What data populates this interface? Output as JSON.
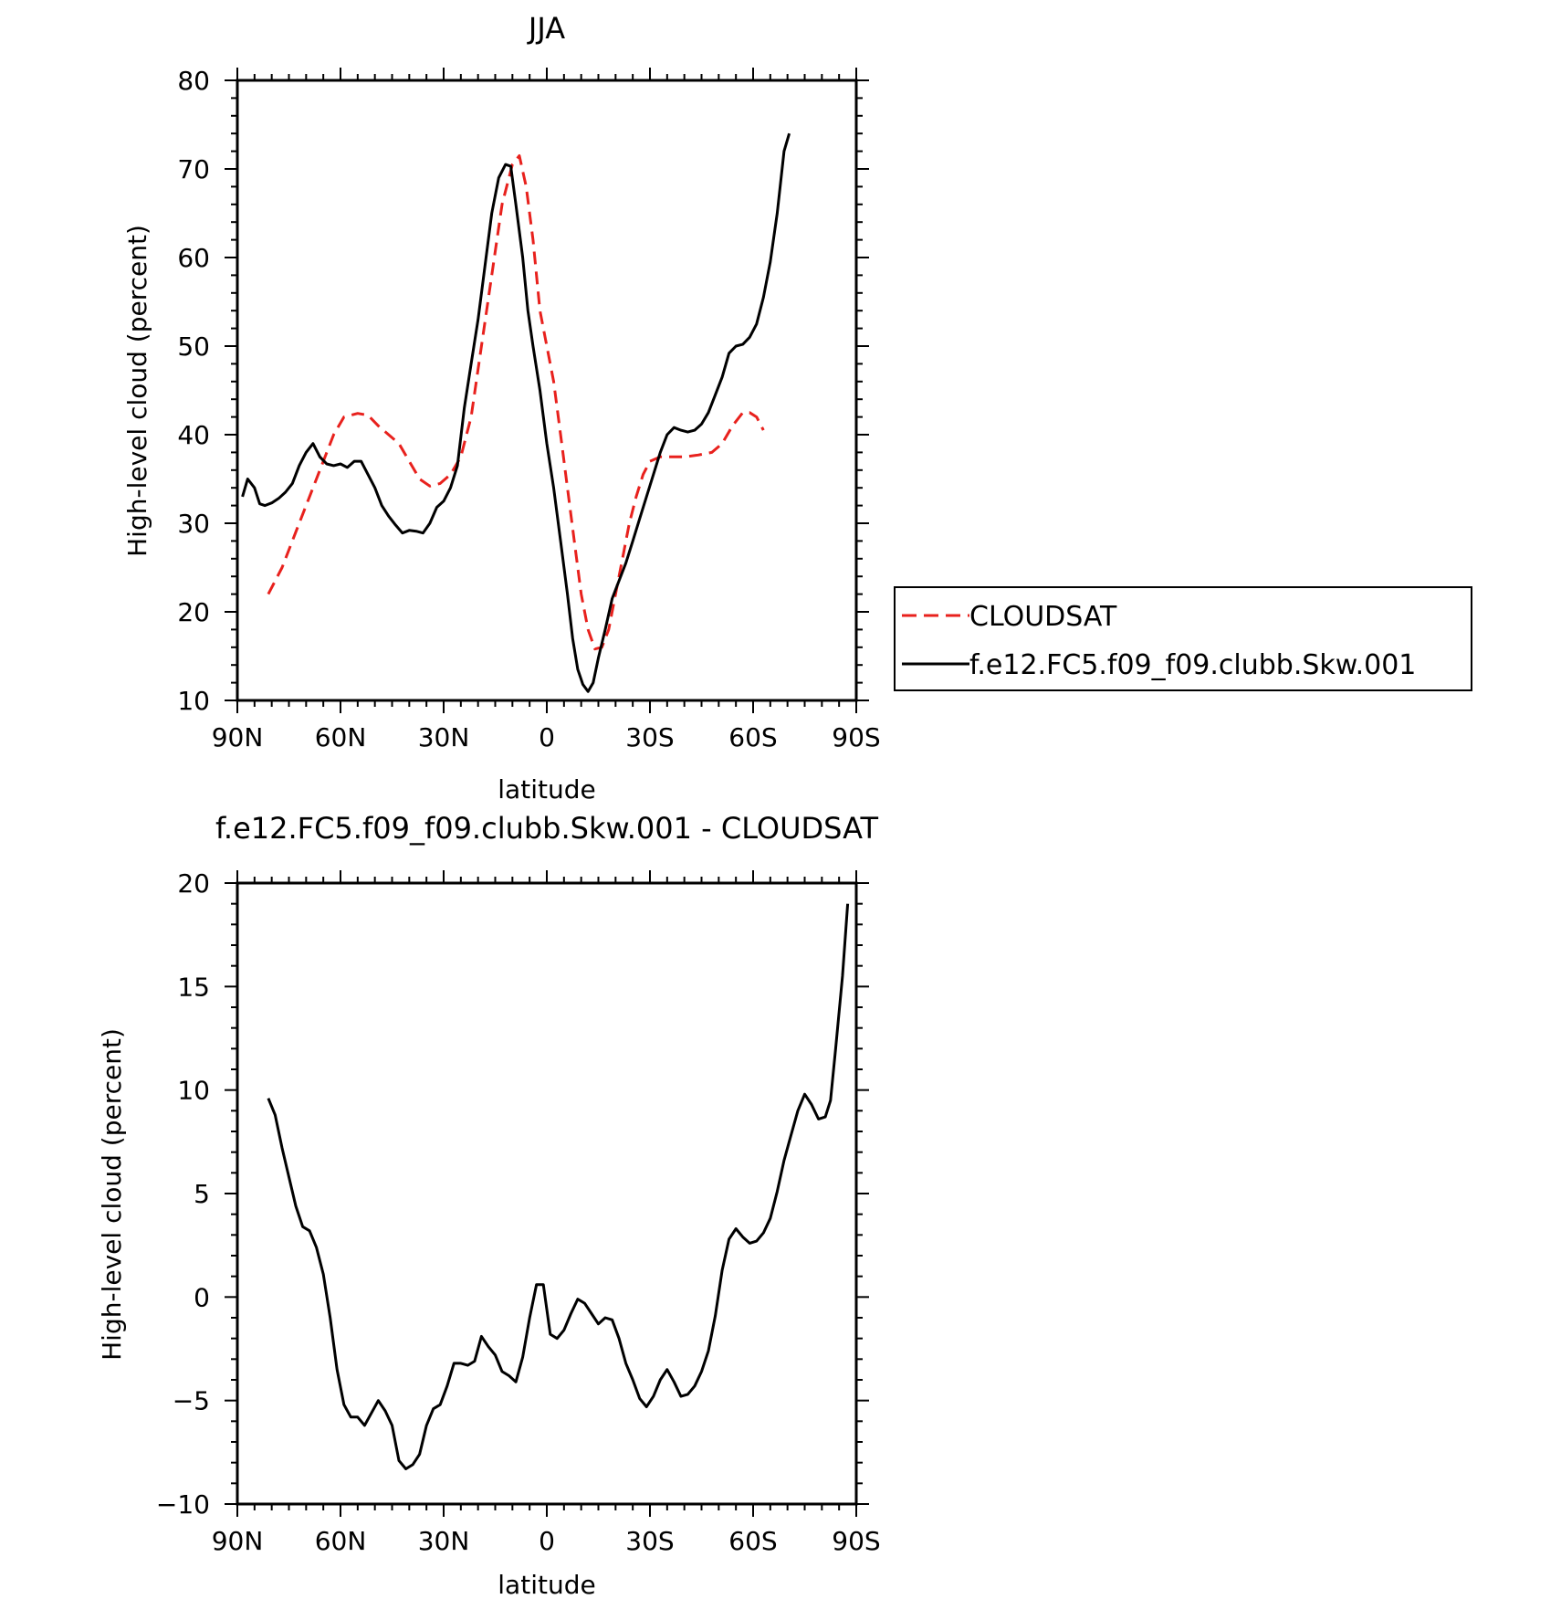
{
  "chart_data": [
    {
      "type": "line",
      "title": "JJA",
      "xlabel": "latitude",
      "ylabel": "High-level cloud (percent)",
      "xlim": [
        90,
        -90
      ],
      "ylim": [
        10,
        80
      ],
      "x_tick_values": [
        90,
        60,
        30,
        0,
        -30,
        -60,
        -90
      ],
      "x_tick_labels": [
        "90N",
        "60N",
        "30N",
        "0",
        "30S",
        "60S",
        "90S"
      ],
      "y_ticks": [
        10,
        20,
        30,
        40,
        50,
        60,
        70,
        80
      ],
      "y_tick_labels": [
        "10",
        "20",
        "30",
        "40",
        "50",
        "60",
        "70",
        "80"
      ],
      "grid": false,
      "legend_position": "right, outside plot",
      "series": [
        {
          "name": "CLOUDSAT",
          "color": "#e8211d",
          "dash": "dashed",
          "points": [
            [
              81,
              22
            ],
            [
              77,
              25
            ],
            [
              73,
              29
            ],
            [
              69,
              33
            ],
            [
              65,
              37
            ],
            [
              62,
              40
            ],
            [
              59,
              42
            ],
            [
              55,
              42.4
            ],
            [
              52,
              42.2
            ],
            [
              49,
              41
            ],
            [
              46,
              40
            ],
            [
              43,
              39
            ],
            [
              40,
              37
            ],
            [
              37,
              35
            ],
            [
              34,
              34.2
            ],
            [
              31,
              34.5
            ],
            [
              28,
              35.5
            ],
            [
              25,
              37.5
            ],
            [
              22,
              42
            ],
            [
              19,
              50
            ],
            [
              16,
              58
            ],
            [
              13,
              66
            ],
            [
              10,
              70.5
            ],
            [
              8,
              71.5
            ],
            [
              6,
              68
            ],
            [
              4,
              62
            ],
            [
              2,
              54
            ],
            [
              0,
              50
            ],
            [
              -2,
              46
            ],
            [
              -4,
              40
            ],
            [
              -6,
              34
            ],
            [
              -8,
              28
            ],
            [
              -10,
              22
            ],
            [
              -12,
              18
            ],
            [
              -14,
              15.8
            ],
            [
              -16,
              16
            ],
            [
              -18,
              18
            ],
            [
              -20,
              22
            ],
            [
              -22,
              26
            ],
            [
              -24,
              30
            ],
            [
              -26,
              33
            ],
            [
              -28,
              35.5
            ],
            [
              -30,
              37
            ],
            [
              -33,
              37.5
            ],
            [
              -36,
              37.5
            ],
            [
              -40,
              37.5
            ],
            [
              -44,
              37.7
            ],
            [
              -48,
              38
            ],
            [
              -51,
              39
            ],
            [
              -54,
              41
            ],
            [
              -57,
              42.5
            ],
            [
              -59,
              42.5
            ],
            [
              -61,
              42
            ],
            [
              -63,
              40.5
            ]
          ]
        },
        {
          "name": "f.e12.FC5.f09_f09.clubb.Skw.001",
          "color": "#000000",
          "dash": "solid",
          "points": [
            [
              88.5,
              33
            ],
            [
              87,
              35
            ],
            [
              85,
              34
            ],
            [
              83.5,
              32.2
            ],
            [
              82,
              32
            ],
            [
              80,
              32.3
            ],
            [
              78,
              32.8
            ],
            [
              76,
              33.5
            ],
            [
              74,
              34.5
            ],
            [
              72,
              36.5
            ],
            [
              70,
              38
            ],
            [
              68,
              39
            ],
            [
              66,
              37.5
            ],
            [
              64,
              36.7
            ],
            [
              62,
              36.5
            ],
            [
              60,
              36.7
            ],
            [
              58,
              36.3
            ],
            [
              56,
              37
            ],
            [
              54,
              37
            ],
            [
              52,
              35.5
            ],
            [
              50,
              34
            ],
            [
              48,
              32
            ],
            [
              46,
              30.8
            ],
            [
              44,
              29.8
            ],
            [
              42,
              28.9
            ],
            [
              40,
              29.2
            ],
            [
              38,
              29.1
            ],
            [
              36,
              28.9
            ],
            [
              34,
              30
            ],
            [
              32,
              31.8
            ],
            [
              30,
              32.5
            ],
            [
              28,
              34
            ],
            [
              26,
              36.5
            ],
            [
              24,
              43
            ],
            [
              22,
              48
            ],
            [
              20,
              53
            ],
            [
              18,
              59
            ],
            [
              16,
              65
            ],
            [
              14,
              69
            ],
            [
              12,
              70.5
            ],
            [
              10.5,
              70.3
            ],
            [
              9,
              66
            ],
            [
              7,
              60
            ],
            [
              5.5,
              54
            ],
            [
              4,
              50
            ],
            [
              2,
              45
            ],
            [
              0,
              39
            ],
            [
              -2,
              34
            ],
            [
              -4,
              28
            ],
            [
              -6,
              22
            ],
            [
              -7.5,
              17
            ],
            [
              -9,
              13.5
            ],
            [
              -10.5,
              11.8
            ],
            [
              -12,
              11
            ],
            [
              -13.5,
              12
            ],
            [
              -15,
              14.8
            ],
            [
              -17,
              18
            ],
            [
              -19,
              21.5
            ],
            [
              -21,
              23.5
            ],
            [
              -23,
              25.5
            ],
            [
              -25,
              28
            ],
            [
              -27,
              30.5
            ],
            [
              -29,
              33
            ],
            [
              -31,
              35.5
            ],
            [
              -33,
              38
            ],
            [
              -35,
              40
            ],
            [
              -37,
              40.8
            ],
            [
              -39,
              40.5
            ],
            [
              -41,
              40.3
            ],
            [
              -43,
              40.5
            ],
            [
              -45,
              41.2
            ],
            [
              -47,
              42.5
            ],
            [
              -49,
              44.5
            ],
            [
              -51,
              46.5
            ],
            [
              -53,
              49.2
            ],
            [
              -55,
              50
            ],
            [
              -57,
              50.2
            ],
            [
              -59,
              51
            ],
            [
              -61,
              52.5
            ],
            [
              -63,
              55.5
            ],
            [
              -65,
              59.5
            ],
            [
              -67,
              65
            ],
            [
              -69,
              72
            ],
            [
              -70.5,
              74
            ]
          ]
        }
      ]
    },
    {
      "type": "line",
      "title": "f.e12.FC5.f09_f09.clubb.Skw.001 - CLOUDSAT",
      "xlabel": "latitude",
      "ylabel": "High-level cloud (percent)",
      "xlim": [
        90,
        -90
      ],
      "ylim": [
        -10,
        20
      ],
      "x_tick_values": [
        90,
        60,
        30,
        0,
        -30,
        -60,
        -90
      ],
      "x_tick_labels": [
        "90N",
        "60N",
        "30N",
        "0",
        "30S",
        "60S",
        "90S"
      ],
      "y_ticks": [
        -10,
        -5,
        0,
        5,
        10,
        15,
        20
      ],
      "y_tick_labels": [
        "−10",
        "−5",
        "0",
        "5",
        "10",
        "15",
        "20"
      ],
      "grid": false,
      "series": [
        {
          "color": "#000000",
          "dash": "solid",
          "points": [
            [
              81,
              9.6
            ],
            [
              79,
              8.8
            ],
            [
              77,
              7.2
            ],
            [
              75,
              5.8
            ],
            [
              73,
              4.4
            ],
            [
              71,
              3.4
            ],
            [
              69,
              3.2
            ],
            [
              67,
              2.4
            ],
            [
              65,
              1.1
            ],
            [
              63,
              -1
            ],
            [
              61,
              -3.5
            ],
            [
              59,
              -5.2
            ],
            [
              57,
              -5.8
            ],
            [
              55,
              -5.8
            ],
            [
              53,
              -6.2
            ],
            [
              51,
              -5.6
            ],
            [
              49,
              -5
            ],
            [
              47,
              -5.5
            ],
            [
              45,
              -6.2
            ],
            [
              43,
              -7.9
            ],
            [
              41,
              -8.3
            ],
            [
              39,
              -8.1
            ],
            [
              37,
              -7.6
            ],
            [
              35,
              -6.2
            ],
            [
              33,
              -5.4
            ],
            [
              31,
              -5.2
            ],
            [
              29,
              -4.3
            ],
            [
              27,
              -3.2
            ],
            [
              25,
              -3.2
            ],
            [
              23,
              -3.3
            ],
            [
              21,
              -3.1
            ],
            [
              19,
              -1.9
            ],
            [
              17,
              -2.4
            ],
            [
              15,
              -2.8
            ],
            [
              13,
              -3.6
            ],
            [
              11,
              -3.8
            ],
            [
              9,
              -4.1
            ],
            [
              7,
              -2.9
            ],
            [
              5,
              -1
            ],
            [
              3,
              0.6
            ],
            [
              1,
              0.6
            ],
            [
              -1,
              -1.8
            ],
            [
              -3,
              -2
            ],
            [
              -5,
              -1.6
            ],
            [
              -7,
              -0.8
            ],
            [
              -9,
              -0.1
            ],
            [
              -11,
              -0.3
            ],
            [
              -13,
              -0.8
            ],
            [
              -15,
              -1.3
            ],
            [
              -17,
              -1
            ],
            [
              -19,
              -1.1
            ],
            [
              -21,
              -2
            ],
            [
              -23,
              -3.2
            ],
            [
              -25,
              -4
            ],
            [
              -27,
              -4.9
            ],
            [
              -29,
              -5.3
            ],
            [
              -31,
              -4.8
            ],
            [
              -33,
              -4
            ],
            [
              -35,
              -3.5
            ],
            [
              -37,
              -4.1
            ],
            [
              -39,
              -4.8
            ],
            [
              -41,
              -4.7
            ],
            [
              -43,
              -4.3
            ],
            [
              -45,
              -3.6
            ],
            [
              -47,
              -2.6
            ],
            [
              -49,
              -0.9
            ],
            [
              -51,
              1.3
            ],
            [
              -53,
              2.8
            ],
            [
              -55,
              3.3
            ],
            [
              -57,
              2.9
            ],
            [
              -59,
              2.6
            ],
            [
              -61,
              2.7
            ],
            [
              -63,
              3.1
            ],
            [
              -65,
              3.8
            ],
            [
              -67,
              5.1
            ],
            [
              -69,
              6.6
            ],
            [
              -71,
              7.8
            ],
            [
              -73,
              9
            ],
            [
              -75,
              9.8
            ],
            [
              -77,
              9.3
            ],
            [
              -79,
              8.6
            ],
            [
              -81,
              8.7
            ],
            [
              -82.5,
              9.5
            ],
            [
              -84,
              12
            ],
            [
              -86,
              15.5
            ],
            [
              -87.5,
              19
            ]
          ]
        }
      ]
    }
  ]
}
